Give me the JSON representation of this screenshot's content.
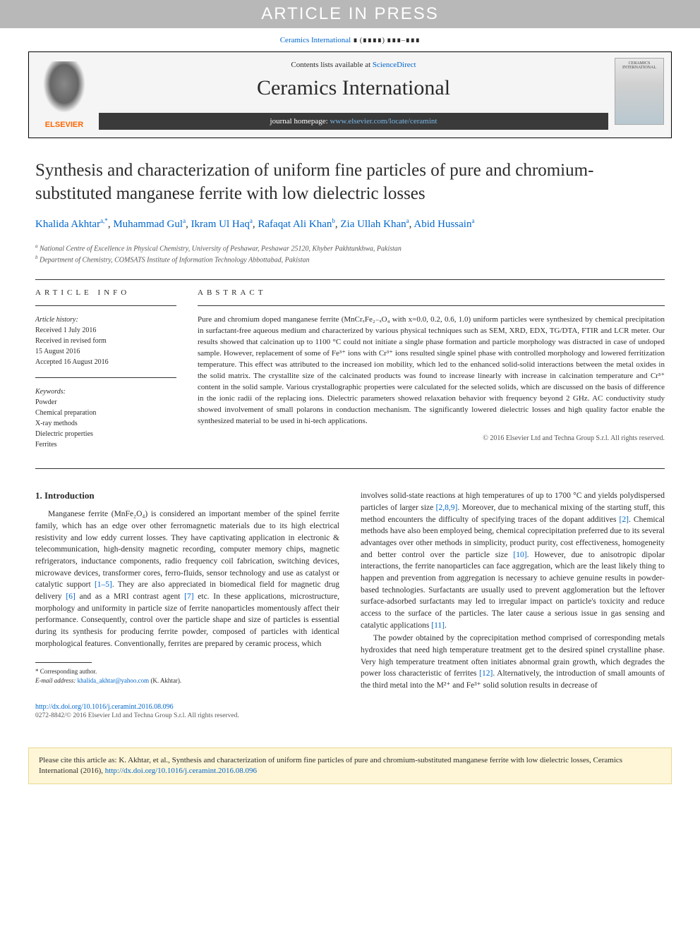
{
  "header": {
    "article_in_press": "ARTICLE IN PRESS",
    "citation_prefix": "Ceramics International",
    "citation_placeholder": " ∎ (∎∎∎∎) ∎∎∎–∎∎∎",
    "contents_text": "Contents lists available at ",
    "contents_link": "ScienceDirect",
    "journal_name": "Ceramics International",
    "homepage_label": "journal homepage: ",
    "homepage_url": "www.elsevier.com/locate/ceramint",
    "elsevier": "ELSEVIER",
    "cover_text": "CERAMICS INTERNATIONAL"
  },
  "article": {
    "title": "Synthesis and characterization of uniform fine particles of pure and chromium-substituted manganese ferrite with low dielectric losses",
    "authors": [
      {
        "name": "Khalida Akhtar",
        "sup": "a,*"
      },
      {
        "name": "Muhammad Gul",
        "sup": "a"
      },
      {
        "name": "Ikram Ul Haq",
        "sup": "a"
      },
      {
        "name": "Rafaqat Ali Khan",
        "sup": "b"
      },
      {
        "name": "Zia Ullah Khan",
        "sup": "a"
      },
      {
        "name": "Abid Hussain",
        "sup": "a"
      }
    ],
    "affiliations": [
      {
        "sup": "a",
        "text": "National Centre of Excellence in Physical Chemistry, University of Peshawar, Peshawar 25120, Khyber Pakhtunkhwa, Pakistan"
      },
      {
        "sup": "b",
        "text": "Department of Chemistry, COMSATS Institute of Information Technology Abbottabad, Pakistan"
      }
    ]
  },
  "info": {
    "label": "ARTICLE INFO",
    "history_label": "Article history:",
    "history": [
      "Received 1 July 2016",
      "Received in revised form",
      "15 August 2016",
      "Accepted 16 August 2016"
    ],
    "keywords_label": "Keywords:",
    "keywords": [
      "Powder",
      "Chemical preparation",
      "X-ray methods",
      "Dielectric properties",
      "Ferrites"
    ]
  },
  "abstract": {
    "label": "ABSTRACT",
    "text": "Pure and chromium doped manganese ferrite (MnCrₓFe₂₋ₓO₄ with x=0.0, 0.2, 0.6, 1.0) uniform particles were synthesized by chemical precipitation in surfactant-free aqueous medium and characterized by various physical techniques such as SEM, XRD, EDX, TG/DTA, FTIR and LCR meter. Our results showed that calcination up to 1100 °C could not initiate a single phase formation and particle morphology was distracted in case of undoped sample. However, replacement of some of Fe³⁺ ions with Cr³⁺ ions resulted single spinel phase with controlled morphology and lowered ferritization temperature. This effect was attributed to the increased ion mobility, which led to the enhanced solid-solid interactions between the metal oxides in the solid matrix. The crystallite size of the calcinated products was found to increase linearly with increase in calcination temperature and Cr³⁺ content in the solid sample. Various crystallographic properties were calculated for the selected solids, which are discussed on the basis of difference in the ionic radii of the replacing ions. Dielectric parameters showed relaxation behavior with frequency beyond 2 GHz. AC conductivity study showed involvement of small polarons in conduction mechanism. The significantly lowered dielectric losses and high quality factor enable the synthesized material to be used in hi-tech applications.",
    "copyright": "© 2016 Elsevier Ltd and Techna Group S.r.l. All rights reserved."
  },
  "body": {
    "intro_heading": "1. Introduction",
    "col1_p1": "Manganese ferrite (MnFe₂O₄) is considered an important member of the spinel ferrite family, which has an edge over other ferromagnetic materials due to its high electrical resistivity and low eddy current losses. They have captivating application in electronic & telecommunication, high-density magnetic recording, computer memory chips, magnetic refrigerators, inductance components, radio frequency coil fabrication, switching devices, microwave devices, transformer cores, ferro-fluids, sensor technology and use as catalyst or catalytic support ",
    "ref_1_5": "[1–5]",
    "col1_p1b": ". They are also appreciated in biomedical field for magnetic drug delivery ",
    "ref_6": "[6]",
    "col1_p1c": " and as a MRI contrast agent ",
    "ref_7": "[7]",
    "col1_p1d": " etc. In these applications, microstructure, morphology and uniformity in particle size of ferrite nanoparticles momentously affect their performance. Consequently, control over the particle shape and size of particles is essential during its synthesis for producing ferrite powder, composed of particles with identical morphological features. Conventionally, ferrites are prepared by ceramic process, which",
    "col2_p1a": "involves solid-state reactions at high temperatures of up to 1700 °C and yields polydispersed particles of larger size ",
    "ref_289": "[2,8,9]",
    "col2_p1b": ". Moreover, due to mechanical mixing of the starting stuff, this method encounters the difficulty of specifying traces of the dopant additives ",
    "ref_2": "[2]",
    "col2_p1c": ". Chemical methods have also been employed being, chemical coprecipitation preferred due to its several advantages over other methods in simplicity, product purity, cost effectiveness, homogeneity and better control over the particle size ",
    "ref_10": "[10]",
    "col2_p1d": ". However, due to anisotropic dipolar interactions, the ferrite nanoparticles can face aggregation, which are the least likely thing to happen and prevention from aggregation is necessary to achieve genuine results in powder-based technologies. Surfactants are usually used to prevent agglomeration but the leftover surface-adsorbed surfactants may led to irregular impact on particle's toxicity and reduce access to the surface of the particles. The later cause a serious issue in gas sensing and catalytic applications ",
    "ref_11": "[11]",
    "col2_p1e": ".",
    "col2_p2a": "The powder obtained by the coprecipitation method comprised of corresponding metals hydroxides that need high temperature treatment get to the desired spinel crystalline phase. Very high temperature treatment often initiates abnormal grain growth, which degrades the power loss characteristic of ferrites ",
    "ref_12": "[12]",
    "col2_p2b": ". Alternatively, the introduction of small amounts of the third metal into the M²⁺ and Fe³⁺ solid solution results in decrease of"
  },
  "footnotes": {
    "corr": "* Corresponding author.",
    "email_label": "E-mail address: ",
    "email": "khalida_akhtar@yahoo.com",
    "email_suffix": " (K. Akhtar)."
  },
  "doi": {
    "url": "http://dx.doi.org/10.1016/j.ceramint.2016.08.096",
    "issn": "0272-8842/© 2016 Elsevier Ltd and Techna Group S.r.l. All rights reserved."
  },
  "citebox": {
    "text_a": "Please cite this article as: K. Akhtar, et al., Synthesis and characterization of uniform fine particles of pure and chromium-substituted manganese ferrite with low dielectric losses, Ceramics International (2016), ",
    "link": "http://dx.doi.org/10.1016/j.ceramint.2016.08.096"
  },
  "colors": {
    "link": "#0066cc",
    "elsevier_orange": "#ff6600",
    "press_bg": "#b8b8b8",
    "homepage_bg": "#3a3a3a",
    "citebox_bg": "#fff6d8",
    "citebox_border": "#e8d890"
  }
}
